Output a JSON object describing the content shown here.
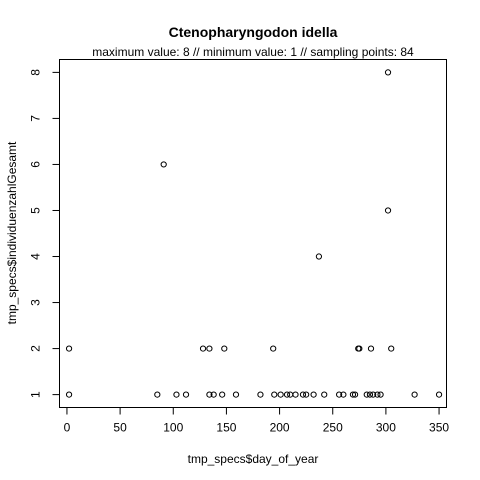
{
  "chart_data": {
    "type": "scatter",
    "title": "Ctenopharyngodon idella",
    "subtitle": "maximum value: 8  //  minimum value: 1  // sampling points: 84",
    "xlabel": "tmp_specs$day_of_year",
    "ylabel": "tmp_specs$individuenzahlGesamt",
    "xlim": [
      -7,
      357
    ],
    "ylim": [
      0.72,
      8.28
    ],
    "xticks": [
      0,
      50,
      100,
      150,
      200,
      250,
      300,
      350
    ],
    "yticks": [
      1,
      2,
      3,
      4,
      5,
      6,
      7,
      8
    ],
    "grid": false,
    "legend": "none",
    "points": [
      {
        "x": 2,
        "y": 2
      },
      {
        "x": 2,
        "y": 1
      },
      {
        "x": 85,
        "y": 1
      },
      {
        "x": 91,
        "y": 6
      },
      {
        "x": 103,
        "y": 1
      },
      {
        "x": 112,
        "y": 1
      },
      {
        "x": 128,
        "y": 2
      },
      {
        "x": 134,
        "y": 2
      },
      {
        "x": 134,
        "y": 1
      },
      {
        "x": 138,
        "y": 1
      },
      {
        "x": 146,
        "y": 1
      },
      {
        "x": 148,
        "y": 2
      },
      {
        "x": 159,
        "y": 1
      },
      {
        "x": 182,
        "y": 1
      },
      {
        "x": 194,
        "y": 2
      },
      {
        "x": 195,
        "y": 1
      },
      {
        "x": 201,
        "y": 1
      },
      {
        "x": 207,
        "y": 1
      },
      {
        "x": 210,
        "y": 1
      },
      {
        "x": 215,
        "y": 1
      },
      {
        "x": 222,
        "y": 1
      },
      {
        "x": 225,
        "y": 1
      },
      {
        "x": 232,
        "y": 1
      },
      {
        "x": 237,
        "y": 4
      },
      {
        "x": 242,
        "y": 1
      },
      {
        "x": 256,
        "y": 1
      },
      {
        "x": 260,
        "y": 1
      },
      {
        "x": 269,
        "y": 1
      },
      {
        "x": 271,
        "y": 1
      },
      {
        "x": 274,
        "y": 2
      },
      {
        "x": 275,
        "y": 2
      },
      {
        "x": 282,
        "y": 1
      },
      {
        "x": 285,
        "y": 1
      },
      {
        "x": 286,
        "y": 2
      },
      {
        "x": 288,
        "y": 1
      },
      {
        "x": 292,
        "y": 1
      },
      {
        "x": 295,
        "y": 1
      },
      {
        "x": 302,
        "y": 8
      },
      {
        "x": 302,
        "y": 5
      },
      {
        "x": 305,
        "y": 2
      },
      {
        "x": 327,
        "y": 1
      },
      {
        "x": 350,
        "y": 1
      }
    ]
  }
}
